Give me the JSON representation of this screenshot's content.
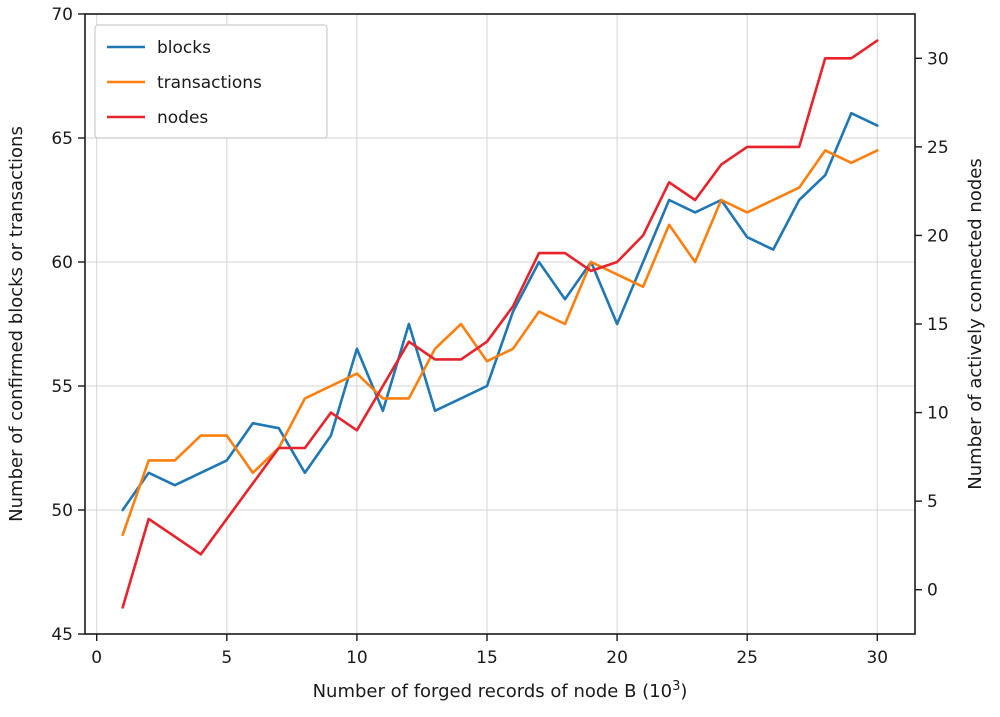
{
  "chart_data": {
    "type": "line",
    "title": "",
    "xlabel_main": "Number of forged records of node B (10",
    "xlabel_sup": "3",
    "xlabel_close": ")",
    "ylabel_left": "Number of confirmed blocks or transactions",
    "ylabel_right": "Number of actively connected nodes",
    "grid": true,
    "legend_position": "upper left",
    "x": [
      1,
      2,
      3,
      4,
      5,
      6,
      7,
      8,
      9,
      10,
      11,
      12,
      13,
      14,
      15,
      16,
      17,
      18,
      19,
      20,
      21,
      22,
      23,
      24,
      25,
      26,
      27,
      28,
      29,
      30
    ],
    "x_ticks": [
      0,
      5,
      10,
      15,
      20,
      25,
      30
    ],
    "left_ticks": [
      45,
      50,
      55,
      60,
      65,
      70
    ],
    "right_ticks": [
      0,
      5,
      10,
      15,
      20,
      25,
      30
    ],
    "xlim": [
      -0.45,
      31.45
    ],
    "left_ylim": [
      45,
      70
    ],
    "right_ylim": [
      -2.5,
      32.5
    ],
    "series": [
      {
        "name": "blocks",
        "color": "#1f77b4",
        "axis": "left",
        "values": [
          50,
          51.5,
          51,
          51.5,
          52,
          53.5,
          53.3,
          51.5,
          53,
          56.5,
          54,
          57.5,
          54,
          54.5,
          55,
          58,
          60,
          58.5,
          60,
          57.5,
          60,
          62.5,
          62,
          62.5,
          61,
          60.5,
          62.5,
          63.5,
          66,
          65.5
        ]
      },
      {
        "name": "transactions",
        "color": "#ff7f0e",
        "axis": "left",
        "values": [
          49,
          52,
          52,
          53,
          53,
          51.5,
          52.5,
          54.5,
          55,
          55.5,
          54.5,
          54.5,
          56.5,
          57.5,
          56,
          56.5,
          58,
          57.5,
          60,
          59.5,
          59,
          61.5,
          60,
          62.5,
          62,
          62.5,
          63,
          64.5,
          64,
          64.5
        ]
      },
      {
        "name": "nodes",
        "color": "#e8232b",
        "axis": "right",
        "values": [
          -1,
          4,
          3,
          2,
          4,
          6,
          8,
          8,
          10,
          9,
          11.5,
          14,
          13,
          13,
          14,
          16,
          19,
          19,
          18,
          18.5,
          20,
          23,
          22,
          24,
          25,
          25,
          25,
          30,
          30,
          31
        ]
      }
    ],
    "colors": {
      "grid": "#d4d4d4",
      "spine": "#1a1a1a",
      "background": "#ffffff",
      "legend_border": "#cccccc"
    }
  }
}
